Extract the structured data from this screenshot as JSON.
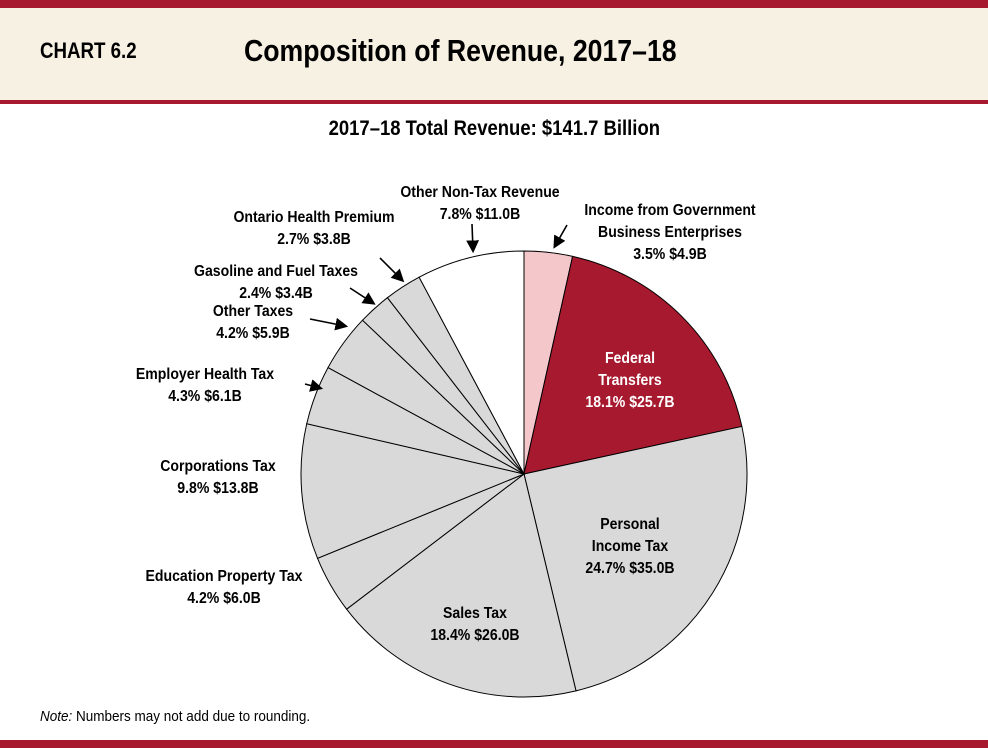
{
  "header": {
    "chart_number": "CHART 6.2",
    "title": "Composition of Revenue, 2017–18"
  },
  "note": {
    "prefix": "Note:",
    "text": " Numbers may not add due to rounding."
  },
  "colors": {
    "accent": "#a6192e",
    "header_bg": "#f7f1e3",
    "grey": "#d9d9d9",
    "pink": "#f4c7cb",
    "white": "#ffffff"
  },
  "chart_data": {
    "type": "pie",
    "title": "2017–18 Total Revenue: $141.7 Billion",
    "slices": [
      {
        "lines": [
          "Income from Government",
          "Business Enterprises",
          "3.5%  $4.9B"
        ],
        "percent": 3.5,
        "value_b": 4.9,
        "color": "#f4c7cb"
      },
      {
        "lines": [
          "Federal",
          "Transfers",
          "18.1%  $25.7B"
        ],
        "percent": 18.1,
        "value_b": 25.7,
        "color": "#a6192e"
      },
      {
        "lines": [
          "Personal",
          "Income Tax",
          "24.7%  $35.0B"
        ],
        "percent": 24.7,
        "value_b": 35.0,
        "color": "#d9d9d9"
      },
      {
        "lines": [
          "Sales Tax",
          "18.4%  $26.0B"
        ],
        "percent": 18.4,
        "value_b": 26.0,
        "color": "#d9d9d9"
      },
      {
        "lines": [
          "Education Property Tax",
          "4.2%  $6.0B"
        ],
        "percent": 4.2,
        "value_b": 6.0,
        "color": "#d9d9d9"
      },
      {
        "lines": [
          "Corporations Tax",
          "9.8%  $13.8B"
        ],
        "percent": 9.8,
        "value_b": 13.8,
        "color": "#d9d9d9"
      },
      {
        "lines": [
          "Employer Health Tax",
          "4.3%  $6.1B"
        ],
        "percent": 4.3,
        "value_b": 6.1,
        "color": "#d9d9d9"
      },
      {
        "lines": [
          "Other Taxes",
          "4.2%  $5.9B"
        ],
        "percent": 4.2,
        "value_b": 5.9,
        "color": "#d9d9d9"
      },
      {
        "lines": [
          "Gasoline and Fuel Taxes",
          "2.4%  $3.4B"
        ],
        "percent": 2.4,
        "value_b": 3.4,
        "color": "#d9d9d9"
      },
      {
        "lines": [
          "Ontario Health Premium",
          "2.7%  $3.8B"
        ],
        "percent": 2.7,
        "value_b": 3.8,
        "color": "#d9d9d9"
      },
      {
        "lines": [
          "Other Non-Tax Revenue",
          "7.8%  $11.0B"
        ],
        "percent": 7.8,
        "value_b": 11.0,
        "color": "#ffffff"
      }
    ]
  }
}
